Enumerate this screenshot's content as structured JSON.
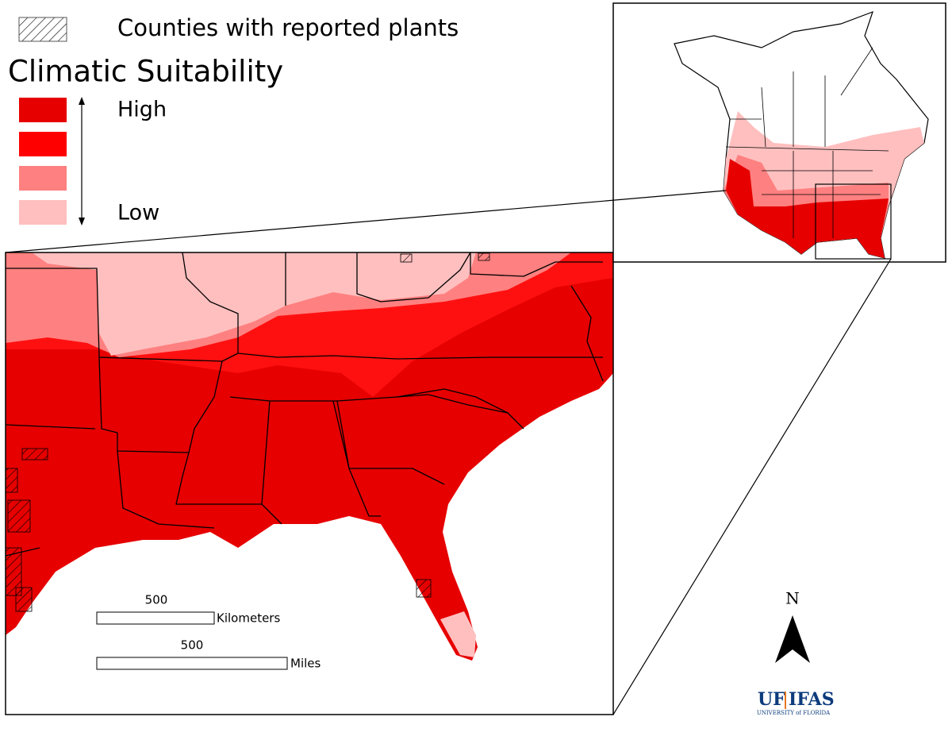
{
  "legend": {
    "hatch_label": "Counties with reported plants",
    "title": "Climatic Suitability",
    "high": "High",
    "low": "Low"
  },
  "scale_bars": [
    {
      "distance": 500,
      "unit": "Kilometers"
    },
    {
      "distance": 500,
      "unit": "Miles"
    }
  ],
  "north_arrow": "N",
  "logo": {
    "uf": "UF",
    "ifas": "IFAS",
    "university": "UNIVERSITY of FLORIDA"
  }
}
